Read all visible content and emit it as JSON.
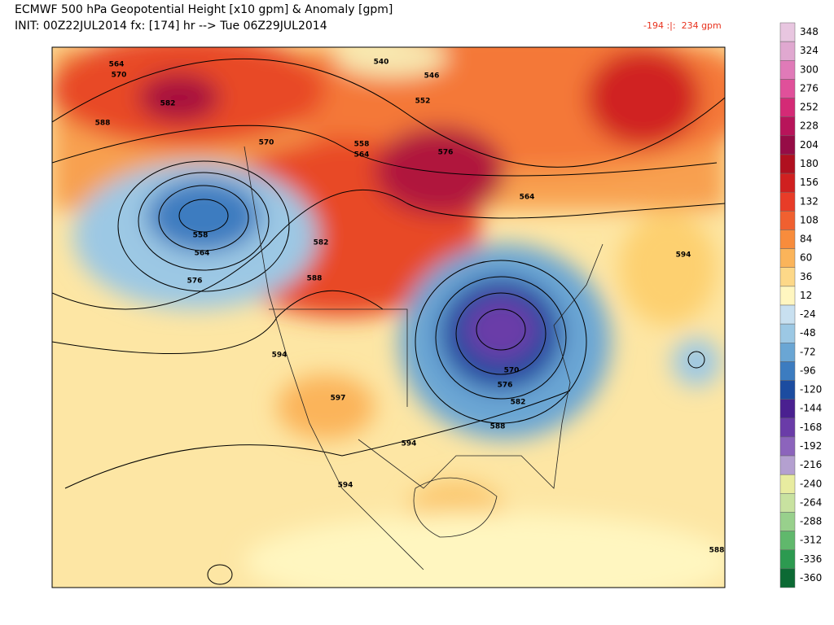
{
  "header": {
    "title": "ECMWF 500 hPa Geopotential Height [x10 gpm] & Anomaly [gpm]",
    "subtitle": "INIT: 00Z22JUL2014 fx: [174] hr --> Tue 06Z29JUL2014",
    "range": "-194 :|:  234 gpm"
  },
  "contour_labels": [
    "564",
    "570",
    "582",
    "588",
    "540",
    "546",
    "552",
    "558",
    "564",
    "570",
    "576",
    "564",
    "558",
    "564",
    "576",
    "582",
    "588",
    "594",
    "597",
    "594",
    "594",
    "570",
    "576",
    "582",
    "588",
    "594",
    "588"
  ],
  "colorbar": {
    "labels": [
      348,
      324,
      300,
      276,
      252,
      228,
      204,
      180,
      156,
      132,
      108,
      84,
      60,
      36,
      12,
      -24,
      -48,
      -72,
      -96,
      -120,
      -144,
      -168,
      -192,
      -216,
      -240,
      -264,
      -288,
      -312,
      -336,
      -360
    ],
    "colors": [
      "#e8c6e0",
      "#e0a8d0",
      "#e07ab8",
      "#e0509a",
      "#d42a76",
      "#b8145a",
      "#960c46",
      "#b01020",
      "#d02020",
      "#e83c28",
      "#f06030",
      "#f88c3c",
      "#fbb45a",
      "#fdd888",
      "#fff6c0",
      "#c8e0f0",
      "#9cc8e4",
      "#6aa6d4",
      "#3c7cc0",
      "#1c4ca0",
      "#4a2090",
      "#6a3ca8",
      "#8c64bc",
      "#b4a0d0",
      "#e8eca0",
      "#c8e2a0",
      "#98d08c",
      "#60b86c",
      "#2c9a50",
      "#0c6a34"
    ]
  }
}
